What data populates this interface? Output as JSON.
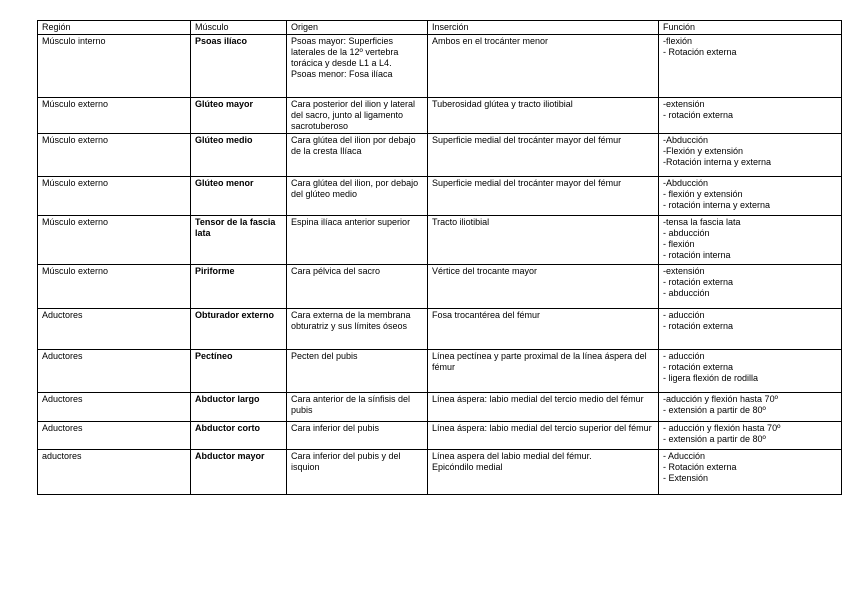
{
  "table": {
    "headers": [
      "Región",
      "Músculo",
      "Origen",
      "Inserción",
      "Función"
    ],
    "rows": [
      {
        "region": "Músculo interno",
        "musculo": "Psoas ilíaco",
        "origen": "Psoas mayor: Superficies laterales de la 12º vertebra torácica y desde L1 a L4.\nPsoas menor:  Fosa ilíaca",
        "insercion": "Ambos en el trocánter menor",
        "funcion": "-flexión\n- Rotación externa"
      },
      {
        "region": "Músculo externo",
        "musculo": "Glúteo mayor",
        "origen": "Cara posterior del ilion y lateral del sacro, junto al ligamento sacrotuberoso",
        "insercion": "Tuberosidad glútea y tracto iliotibial",
        "funcion": "-extensión\n- rotación externa"
      },
      {
        "region": "Músculo externo",
        "musculo": "Glúteo medio",
        "origen": "Cara glútea del ilion por debajo de la cresta Ilíaca",
        "insercion": "Superficie medial del trocánter mayor del fémur",
        "funcion": "-Abducción\n-Flexión y extensión\n-Rotación interna y externa"
      },
      {
        "region": "Músculo externo",
        "musculo": "Glúteo menor",
        "origen": "Cara glútea del ilion, por debajo del glúteo medio",
        "insercion": "Superficie medial del trocánter mayor del fémur",
        "funcion": "-Abducción\n- flexión y extensión\n- rotación interna y externa"
      },
      {
        "region": "Músculo externo",
        "musculo": "Tensor de la fascia lata",
        "origen": "Espina ilíaca anterior superior",
        "insercion": "Tracto iliotibial",
        "funcion": "-tensa la fascia lata\n- abducción\n- flexión\n- rotación interna"
      },
      {
        "region": "Músculo externo",
        "musculo": "Piriforme",
        "origen": "Cara pélvica del sacro",
        "insercion": "Vértice del trocante mayor",
        "funcion": "-extensión\n- rotación externa\n- abducción"
      },
      {
        "region": "Aductores",
        "musculo": "Obturador externo",
        "origen": "Cara externa de la membrana obturatriz y sus límites óseos",
        "insercion": "Fosa trocantérea del fémur",
        "funcion": "- aducción\n- rotación externa"
      },
      {
        "region": "Aductores",
        "musculo": "Pectíneo",
        "origen": "Pecten del pubis",
        "insercion": "Línea pectínea y parte proximal de la línea áspera del fémur",
        "funcion": "- aducción\n- rotación externa\n- ligera flexión  de rodilla"
      },
      {
        "region": "Aductores",
        "musculo": "Abductor largo",
        "origen": "Cara anterior de la sínfisis del pubis",
        "insercion": "Línea áspera: labio medial del tercio medio del fémur",
        "funcion": "-aducción y flexión hasta 70º\n- extensión a partir de 80º"
      },
      {
        "region": "Aductores",
        "musculo": "Abductor corto",
        "origen": "Cara inferior del pubis",
        "insercion": "Línea áspera: labio medial del tercio superior del fémur",
        "funcion": "- aducción y flexión hasta 70º\n- extensión a partir de 80º"
      },
      {
        "region": "aductores",
        "musculo": "Abductor mayor",
        "origen": "Cara inferior del pubis y del isquion",
        "insercion": "Línea aspera del labio medial del fémur.\nEpicóndilo medial",
        "funcion": "- Aducción\n- Rotación externa\n- Extensión"
      }
    ]
  }
}
